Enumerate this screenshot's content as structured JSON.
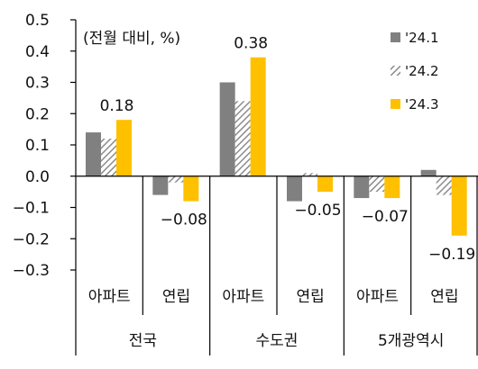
{
  "chart_data": {
    "type": "bar",
    "title": "",
    "unit_note": "(전월 대비, %)",
    "ylim": [
      -0.3,
      0.5
    ],
    "yticks": [
      "0.5",
      "0.4",
      "0.3",
      "0.2",
      "0.1",
      "0.0",
      "-0.1",
      "-0.2",
      "-0.3"
    ],
    "ytick_values": [
      0.5,
      0.4,
      0.3,
      0.2,
      0.1,
      0.0,
      -0.1,
      -0.2,
      -0.3
    ],
    "categories": [
      "아파트",
      "연립",
      "아파트",
      "연립",
      "아파트",
      "연립"
    ],
    "groups": [
      "전국",
      "수도권",
      "5개광역시"
    ],
    "series": [
      {
        "name": "'24.1",
        "values": [
          0.14,
          -0.06,
          0.3,
          -0.08,
          -0.07,
          0.02
        ],
        "color": "#808080",
        "pattern": "solid"
      },
      {
        "name": "'24.2",
        "values": [
          0.12,
          -0.02,
          0.24,
          0.01,
          -0.05,
          -0.06
        ],
        "color": "#9a9a9a",
        "pattern": "hatch"
      },
      {
        "name": "'24.3",
        "values": [
          0.18,
          -0.08,
          0.38,
          -0.05,
          -0.07,
          -0.19
        ],
        "color": "#ffc000",
        "pattern": "solid"
      }
    ],
    "data_labels": [
      {
        "category_index": 0,
        "series_index": 2,
        "text": "0.18"
      },
      {
        "category_index": 1,
        "series_index": 2,
        "text": "-0.08"
      },
      {
        "category_index": 2,
        "series_index": 2,
        "text": "0.38"
      },
      {
        "category_index": 3,
        "series_index": 2,
        "text": "-0.05"
      },
      {
        "category_index": 4,
        "series_index": 2,
        "text": "-0.07"
      },
      {
        "category_index": 5,
        "series_index": 2,
        "text": "-0.19"
      }
    ],
    "legend_position": "top-right",
    "grid": false
  }
}
